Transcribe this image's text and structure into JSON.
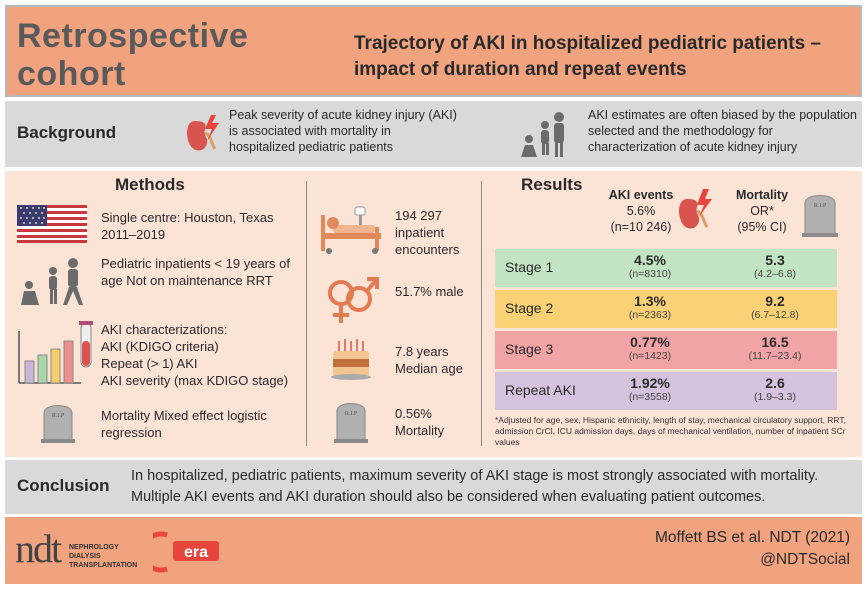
{
  "header": {
    "study_type": "Retrospective cohort",
    "title": "Trajectory of AKI in hospitalized pediatric patients – impact of duration and repeat events"
  },
  "background": {
    "label": "Background",
    "text1": "Peak severity of acute kidney injury (AKI) is associated with mortality in hospitalized pediatric patients",
    "text2": "AKI estimates are often biased by the population selected and the methodology for characterization of acute kidney injury"
  },
  "methods": {
    "heading": "Methods",
    "site": "Single centre: Houston, Texas 2011–2019",
    "population": "Pediatric inpatients < 19 years of age Not on maintenance RRT",
    "characterization_heading": "AKI characterizations:",
    "characterization_lines": [
      "AKI (KDIGO criteria)",
      "Repeat (> 1) AKI",
      "AKI severity (max KDIGO stage)"
    ],
    "outcome": "Mortality Mixed effect logistic regression",
    "tombstone_text": "R.I.P"
  },
  "stats": {
    "encounters": "194 297 inpatient encounters",
    "male": "51.7% male",
    "age": "7.8 years Median age",
    "mortality": "0.56% Mortality"
  },
  "results": {
    "heading": "Results",
    "col1_title": "AKI events",
    "col1_value": "5.6%",
    "col1_n": "(n=10 246)",
    "col2_title": "Mortality",
    "col2_sub": "OR*",
    "col2_ci": "(95% CI)",
    "rows": [
      {
        "label": "Stage 1",
        "pct": "4.5%",
        "n": "(n=8310)",
        "or": "5.3",
        "ci": "(4.2–6.8)",
        "color": "#c3e4c4"
      },
      {
        "label": "Stage 2",
        "pct": "1.3%",
        "n": "(n=2363)",
        "or": "9.2",
        "ci": "(6.7–12.8)",
        "color": "#fbd175"
      },
      {
        "label": "Stage 3",
        "pct": "0.77%",
        "n": "(n=1423)",
        "or": "16.5",
        "ci": "(11.7–23.4)",
        "color": "#f2a3a6"
      },
      {
        "label": "Repeat AKI",
        "pct": "1.92%",
        "n": "(n=3558)",
        "or": "2.6",
        "ci": "(1.9–3.3)",
        "color": "#d5c3dd"
      }
    ],
    "footnote": "*Adjusted for age, sex, Hispanic ethnicity, length of stay, mechanical circulatory support, RRT, admission CrCl, ICU admission days, days of mechanical ventilation, number of inpatient SCr values"
  },
  "conclusion": {
    "label": "Conclusion",
    "text": "In hospitalized, pediatric patients, maximum severity of AKI stage is most strongly associated with mortality. Multiple AKI events and AKI duration should also be considered when evaluating patient outcomes."
  },
  "footer": {
    "citation": "Moffett BS et al. NDT (2021)",
    "handle": "@NDTSocial",
    "ndt_logo_letters": "ndt",
    "ndt_logo_text": "NEPHROLOGY DIALYSIS TRANSPLANTATION",
    "era_logo_text": "era"
  },
  "colors": {
    "accent": "#f1a27e",
    "band": "#d9d9d9",
    "panel": "#fbe3d6",
    "kidney": "#d9534f",
    "bolt": "#e8453c"
  },
  "icons": [
    "kidney-icon",
    "family-icon",
    "us-flag-icon",
    "children-icon",
    "bar-chart-icon",
    "test-tube-icon",
    "tombstone-icon",
    "hospital-bed-icon",
    "gender-icon",
    "cake-icon"
  ]
}
